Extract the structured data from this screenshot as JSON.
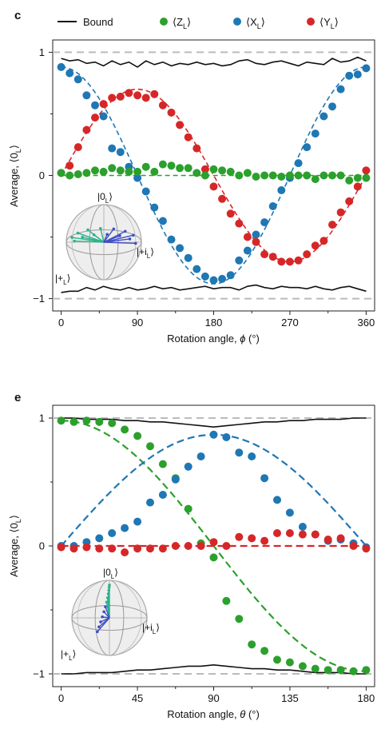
{
  "legend": {
    "entries": [
      {
        "key": "bound",
        "label": "Bound",
        "color": "#111111",
        "marker": "line"
      },
      {
        "key": "z",
        "label": "⟨Z",
        "sub": "L",
        "suffix": "⟩",
        "color": "#2ca02c",
        "marker": "dot"
      },
      {
        "key": "x",
        "label": "⟨X",
        "sub": "L",
        "suffix": "⟩",
        "color": "#1f77b4",
        "marker": "dot"
      },
      {
        "key": "y",
        "label": "⟨Y",
        "sub": "L",
        "suffix": "⟩",
        "color": "#d62728",
        "marker": "dot"
      }
    ]
  },
  "colors": {
    "z": "#2ca02c",
    "x": "#1f77b4",
    "y": "#d62728",
    "bound": "#111111",
    "reference": "#bbbbbb"
  },
  "chart_data": [
    {
      "panel": "c",
      "type": "scatter",
      "xlabel_main": "Rotation angle, ",
      "xlabel_symbol": "ϕ",
      "xlabel_unit": " (°)",
      "ylabel_main": "Average, ⟨0",
      "ylabel_sub": "L",
      "ylabel_suffix": "⟩",
      "xlim": [
        -10,
        370
      ],
      "ylim": [
        -1.1,
        1.1
      ],
      "xticks": [
        0,
        90,
        180,
        270,
        360
      ],
      "yticks": [
        1,
        0,
        -1
      ],
      "reference_lines": [
        1,
        -1
      ],
      "bloch_labels": {
        "top": "|0",
        "top_sub": "L",
        "right": "|+i",
        "right_sub": "L",
        "left": "|+",
        "left_sub": "L"
      },
      "x": [
        0,
        10,
        20,
        30,
        40,
        50,
        60,
        70,
        80,
        90,
        100,
        110,
        120,
        130,
        140,
        150,
        160,
        170,
        180,
        190,
        200,
        210,
        220,
        230,
        240,
        250,
        260,
        270,
        280,
        290,
        300,
        310,
        320,
        330,
        340,
        350,
        360
      ],
      "series": [
        {
          "key": "x",
          "name": "⟨X_L⟩",
          "fit": "cos",
          "values": [
            0.88,
            0.83,
            0.78,
            0.65,
            0.57,
            0.48,
            0.22,
            0.19,
            0.07,
            -0.02,
            -0.13,
            -0.26,
            -0.37,
            -0.52,
            -0.59,
            -0.67,
            -0.76,
            -0.82,
            -0.85,
            -0.84,
            -0.81,
            -0.69,
            -0.61,
            -0.48,
            -0.38,
            -0.25,
            -0.12,
            -0.02,
            0.1,
            0.23,
            0.34,
            0.48,
            0.56,
            0.7,
            0.81,
            0.82,
            0.87
          ]
        },
        {
          "key": "y",
          "name": "⟨Y_L⟩",
          "fit": "sin",
          "values": [
            0.02,
            0.08,
            0.23,
            0.37,
            0.47,
            0.58,
            0.63,
            0.64,
            0.67,
            0.65,
            0.63,
            0.66,
            0.57,
            0.51,
            0.41,
            0.31,
            0.22,
            0.05,
            -0.09,
            -0.19,
            -0.31,
            -0.39,
            -0.5,
            -0.54,
            -0.64,
            -0.66,
            -0.7,
            -0.7,
            -0.69,
            -0.64,
            -0.57,
            -0.53,
            -0.4,
            -0.3,
            -0.21,
            -0.09,
            0.04
          ]
        },
        {
          "key": "z",
          "name": "⟨Z_L⟩",
          "fit": "zero",
          "values": [
            0.02,
            0.0,
            0.01,
            0.02,
            0.04,
            0.03,
            0.06,
            0.04,
            0.03,
            0.03,
            0.07,
            0.03,
            0.09,
            0.08,
            0.06,
            0.06,
            0.02,
            0.0,
            0.05,
            0.04,
            0.03,
            0.0,
            0.02,
            -0.01,
            0.0,
            0.0,
            -0.01,
            0.0,
            0.0,
            0.0,
            -0.03,
            0.0,
            0.0,
            0.0,
            -0.04,
            -0.02,
            -0.02
          ]
        }
      ],
      "bound": {
        "x": [
          0,
          10,
          20,
          30,
          40,
          50,
          60,
          70,
          80,
          90,
          100,
          110,
          120,
          130,
          140,
          150,
          160,
          170,
          180,
          190,
          200,
          210,
          220,
          230,
          240,
          250,
          260,
          270,
          280,
          290,
          300,
          310,
          320,
          330,
          340,
          350,
          360
        ],
        "upper": [
          0.95,
          0.93,
          0.94,
          0.91,
          0.92,
          0.89,
          0.93,
          0.9,
          0.92,
          0.88,
          0.93,
          0.9,
          0.92,
          0.89,
          0.91,
          0.9,
          0.92,
          0.9,
          0.91,
          0.89,
          0.9,
          0.93,
          0.94,
          0.91,
          0.9,
          0.92,
          0.93,
          0.91,
          0.89,
          0.92,
          0.91,
          0.9,
          0.95,
          0.92,
          0.93,
          0.96,
          0.93
        ],
        "lower": [
          -0.95,
          -0.94,
          -0.94,
          -0.91,
          -0.93,
          -0.9,
          -0.92,
          -0.93,
          -0.91,
          -0.93,
          -0.92,
          -0.9,
          -0.92,
          -0.91,
          -0.93,
          -0.92,
          -0.91,
          -0.9,
          -0.92,
          -0.91,
          -0.91,
          -0.93,
          -0.9,
          -0.89,
          -0.91,
          -0.92,
          -0.9,
          -0.91,
          -0.91,
          -0.92,
          -0.9,
          -0.92,
          -0.93,
          -0.91,
          -0.9,
          -0.92,
          -0.94
        ]
      }
    },
    {
      "panel": "e",
      "type": "scatter",
      "xlabel_main": "Rotation angle, ",
      "xlabel_symbol": "θ",
      "xlabel_unit": " (°)",
      "ylabel_main": "Average, ⟨0",
      "ylabel_sub": "L",
      "ylabel_suffix": "⟩",
      "xlim": [
        -5,
        185
      ],
      "ylim": [
        -1.1,
        1.1
      ],
      "xticks": [
        0,
        45,
        90,
        135,
        180
      ],
      "yticks": [
        1,
        0,
        -1
      ],
      "reference_lines": [
        1,
        -1
      ],
      "bloch_labels": {
        "top": "|0",
        "top_sub": "L",
        "right": "|+i",
        "right_sub": "L",
        "left": "|+",
        "left_sub": "L"
      },
      "x": [
        0,
        7.5,
        15,
        22.5,
        30,
        37.5,
        45,
        52.5,
        60,
        67.5,
        75,
        82.5,
        90,
        97.5,
        105,
        112.5,
        120,
        127.5,
        135,
        142.5,
        150,
        157.5,
        165,
        172.5,
        180
      ],
      "series": [
        {
          "key": "z",
          "name": "⟨Z_L⟩",
          "fit": "cos",
          "values": [
            0.98,
            0.97,
            0.98,
            0.97,
            0.96,
            0.91,
            0.86,
            0.78,
            0.64,
            0.53,
            0.29,
            0.02,
            -0.09,
            -0.43,
            -0.57,
            -0.77,
            -0.82,
            -0.89,
            -0.91,
            -0.94,
            -0.96,
            -0.97,
            -0.97,
            -0.98,
            -0.97
          ]
        },
        {
          "key": "x",
          "name": "⟨X_L⟩",
          "fit": "sin",
          "values": [
            0.0,
            0.0,
            0.03,
            0.06,
            0.1,
            0.14,
            0.19,
            0.34,
            0.4,
            0.52,
            0.62,
            0.7,
            0.87,
            0.85,
            0.73,
            0.7,
            0.53,
            0.36,
            0.26,
            0.15,
            0.09,
            0.04,
            0.05,
            0.02,
            -0.01
          ]
        },
        {
          "key": "y",
          "name": "⟨Y_L⟩",
          "fit": "zero",
          "values": [
            -0.01,
            -0.02,
            -0.01,
            -0.02,
            -0.02,
            -0.05,
            -0.02,
            -0.02,
            -0.02,
            0.0,
            0.0,
            0.0,
            0.03,
            0.0,
            0.07,
            0.06,
            0.04,
            0.1,
            0.1,
            0.09,
            0.09,
            0.05,
            0.06,
            0.0,
            -0.02
          ]
        }
      ],
      "bound": {
        "x": [
          0,
          7.5,
          15,
          22.5,
          30,
          37.5,
          45,
          52.5,
          60,
          67.5,
          75,
          82.5,
          90,
          97.5,
          105,
          112.5,
          120,
          127.5,
          135,
          142.5,
          150,
          157.5,
          165,
          172.5,
          180
        ],
        "upper": [
          1.0,
          1.0,
          0.99,
          0.99,
          0.99,
          0.98,
          0.98,
          0.97,
          0.97,
          0.96,
          0.95,
          0.94,
          0.93,
          0.94,
          0.95,
          0.96,
          0.97,
          0.97,
          0.98,
          0.98,
          0.99,
          0.99,
          0.99,
          1.0,
          1.0
        ],
        "lower": [
          -1.0,
          -1.0,
          -0.99,
          -0.99,
          -0.99,
          -0.98,
          -0.97,
          -0.97,
          -0.96,
          -0.95,
          -0.94,
          -0.94,
          -0.93,
          -0.94,
          -0.95,
          -0.96,
          -0.96,
          -0.97,
          -0.97,
          -0.98,
          -0.99,
          -0.99,
          -0.99,
          -1.0,
          -1.0
        ]
      }
    }
  ]
}
